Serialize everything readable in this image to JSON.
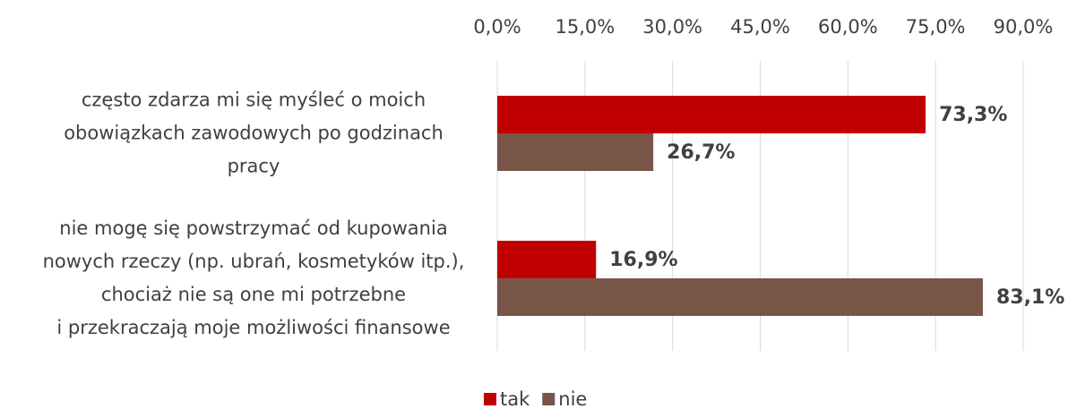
{
  "chart_data": {
    "type": "bar",
    "orientation": "horizontal",
    "categories": [
      "często zdarza mi się myśleć o moich\nobowiązkach zawodowych po godzinach\npracy",
      "nie mogę się powstrzymać od kupowania\nnowych rzeczy (np. ubrań, kosmetyków itp.),\nchociaż nie są one mi potrzebne\ni przekraczają moje możliwości finansowe"
    ],
    "series": [
      {
        "name": "tak",
        "color": "#c00000",
        "values": [
          73.3,
          16.9
        ],
        "value_labels": [
          "73,3%",
          "16,9%"
        ]
      },
      {
        "name": "nie",
        "color": "#795548",
        "values": [
          26.7,
          83.1
        ],
        "value_labels": [
          "26,7%",
          "83,1%"
        ]
      }
    ],
    "xlim": [
      0,
      90
    ],
    "xticks": [
      {
        "value": 0,
        "label": "0,0%"
      },
      {
        "value": 15,
        "label": "15,0%"
      },
      {
        "value": 30,
        "label": "30,0%"
      },
      {
        "value": 45,
        "label": "45,0%"
      },
      {
        "value": 60,
        "label": "60,0%"
      },
      {
        "value": 75,
        "label": "75,0%"
      },
      {
        "value": 90,
        "label": "90,0%"
      }
    ],
    "grid": true,
    "legend": "bottom"
  }
}
